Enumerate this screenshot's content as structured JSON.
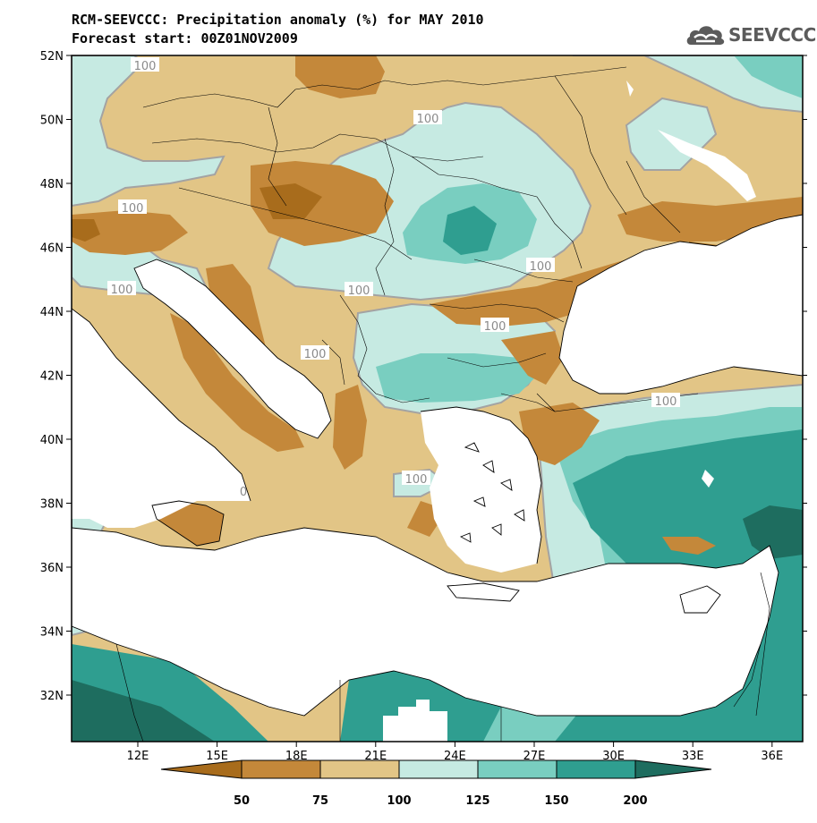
{
  "title": {
    "line1": "RCM-SEEVCCC: Precipitation anomaly (%) for MAY 2010",
    "line2": "Forecast start: 00Z01NOV2009"
  },
  "logo": {
    "text": "SEEVCCC",
    "icon": "cloud-logo-icon"
  },
  "colors": {
    "lt50": "#a86c1c",
    "c50_75": "#c4883a",
    "c75_100": "#e2c586",
    "c100_125": "#c6eae2",
    "c125_150": "#79cec0",
    "c150_200": "#2f9e90",
    "gt200": "#1e6d5f",
    "contour": "#a3a3a3",
    "coast": "#000000"
  },
  "map": {
    "lat_ticks": [
      "52N",
      "50N",
      "48N",
      "46N",
      "44N",
      "42N",
      "40N",
      "38N",
      "36N",
      "34N",
      "32N"
    ],
    "lon_ticks": [
      "12E",
      "15E",
      "18E",
      "21E",
      "24E",
      "27E",
      "30E",
      "33E",
      "36E"
    ],
    "contour_labels": [
      "100",
      "100",
      "100",
      "100",
      "100",
      "100",
      "100",
      "100",
      "100",
      "100",
      "0"
    ]
  },
  "colorbar": {
    "labels": [
      "50",
      "75",
      "100",
      "125",
      "150",
      "200"
    ]
  }
}
